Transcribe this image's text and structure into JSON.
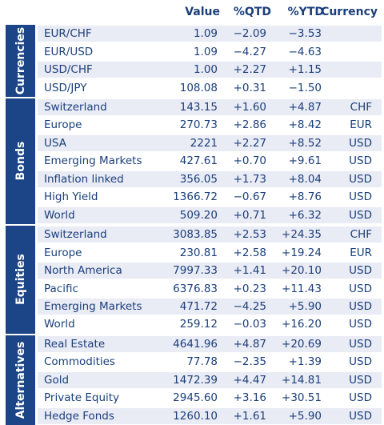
{
  "headers": {
    "value": "Value",
    "qtd": "%QTD",
    "ytd": "%YTD",
    "currency": "Currency"
  },
  "colors": {
    "band": "#1c4587",
    "text": "#1b3f7a",
    "shade": "#e9ebf5"
  },
  "groups": [
    {
      "name": "Currencies",
      "rows": [
        {
          "name": "EUR/CHF",
          "value": "1.09",
          "qtd": "−2.09",
          "ytd": "−3.53",
          "currency": ""
        },
        {
          "name": "EUR/USD",
          "value": "1.09",
          "qtd": "−4.27",
          "ytd": "−4.63",
          "currency": ""
        },
        {
          "name": "USD/CHF",
          "value": "1.00",
          "qtd": "+2.27",
          "ytd": "+1.15",
          "currency": ""
        },
        {
          "name": "USD/JPY",
          "value": "108.08",
          "qtd": "+0.31",
          "ytd": "−1.50",
          "currency": ""
        }
      ]
    },
    {
      "name": "Bonds",
      "rows": [
        {
          "name": "Switzerland",
          "value": "143.15",
          "qtd": "+1.60",
          "ytd": "+4.87",
          "currency": "CHF"
        },
        {
          "name": "Europe",
          "value": "270.73",
          "qtd": "+2.86",
          "ytd": "+8.42",
          "currency": "EUR"
        },
        {
          "name": "USA",
          "value": "2221",
          "qtd": "+2.27",
          "ytd": "+8.52",
          "currency": "USD"
        },
        {
          "name": "Emerging Markets",
          "value": "427.61",
          "qtd": "+0.70",
          "ytd": "+9.61",
          "currency": "USD"
        },
        {
          "name": "Inflation linked",
          "value": "356.05",
          "qtd": "+1.73",
          "ytd": "+8.04",
          "currency": "USD"
        },
        {
          "name": "High Yield",
          "value": "1366.72",
          "qtd": "−0.67",
          "ytd": "+8.76",
          "currency": "USD"
        },
        {
          "name": "World",
          "value": "509.20",
          "qtd": "+0.71",
          "ytd": "+6.32",
          "currency": "USD"
        }
      ]
    },
    {
      "name": "Equities",
      "rows": [
        {
          "name": "Switzerland",
          "value": "3083.85",
          "qtd": "+2.53",
          "ytd": "+24.35",
          "currency": "CHF"
        },
        {
          "name": "Europe",
          "value": "230.81",
          "qtd": "+2.58",
          "ytd": "+19.24",
          "currency": "EUR"
        },
        {
          "name": "North America",
          "value": "7997.33",
          "qtd": "+1.41",
          "ytd": "+20.10",
          "currency": "USD"
        },
        {
          "name": "Pacific",
          "value": "6376.83",
          "qtd": "+0.23",
          "ytd": "+11.43",
          "currency": "USD"
        },
        {
          "name": "Emerging Markets",
          "value": "471.72",
          "qtd": "−4.25",
          "ytd": "+5.90",
          "currency": "USD"
        },
        {
          "name": "World",
          "value": "259.12",
          "qtd": "−0.03",
          "ytd": "+16.20",
          "currency": "USD"
        }
      ]
    },
    {
      "name": "Alternatives",
      "rows": [
        {
          "name": "Real Estate",
          "value": "4641.96",
          "qtd": "+4.87",
          "ytd": "+20.69",
          "currency": "USD"
        },
        {
          "name": "Commodities",
          "value": "77.78",
          "qtd": "−2.35",
          "ytd": "+1.39",
          "currency": "USD"
        },
        {
          "name": "Gold",
          "value": "1472.39",
          "qtd": "+4.47",
          "ytd": "+14.81",
          "currency": "USD"
        },
        {
          "name": "Private Equity",
          "value": "2945.60",
          "qtd": "+3.16",
          "ytd": "+30.51",
          "currency": "USD"
        },
        {
          "name": "Hedge Fonds",
          "value": "1260.10",
          "qtd": "+1.61",
          "ytd": "+5.90",
          "currency": "USD"
        }
      ]
    }
  ]
}
